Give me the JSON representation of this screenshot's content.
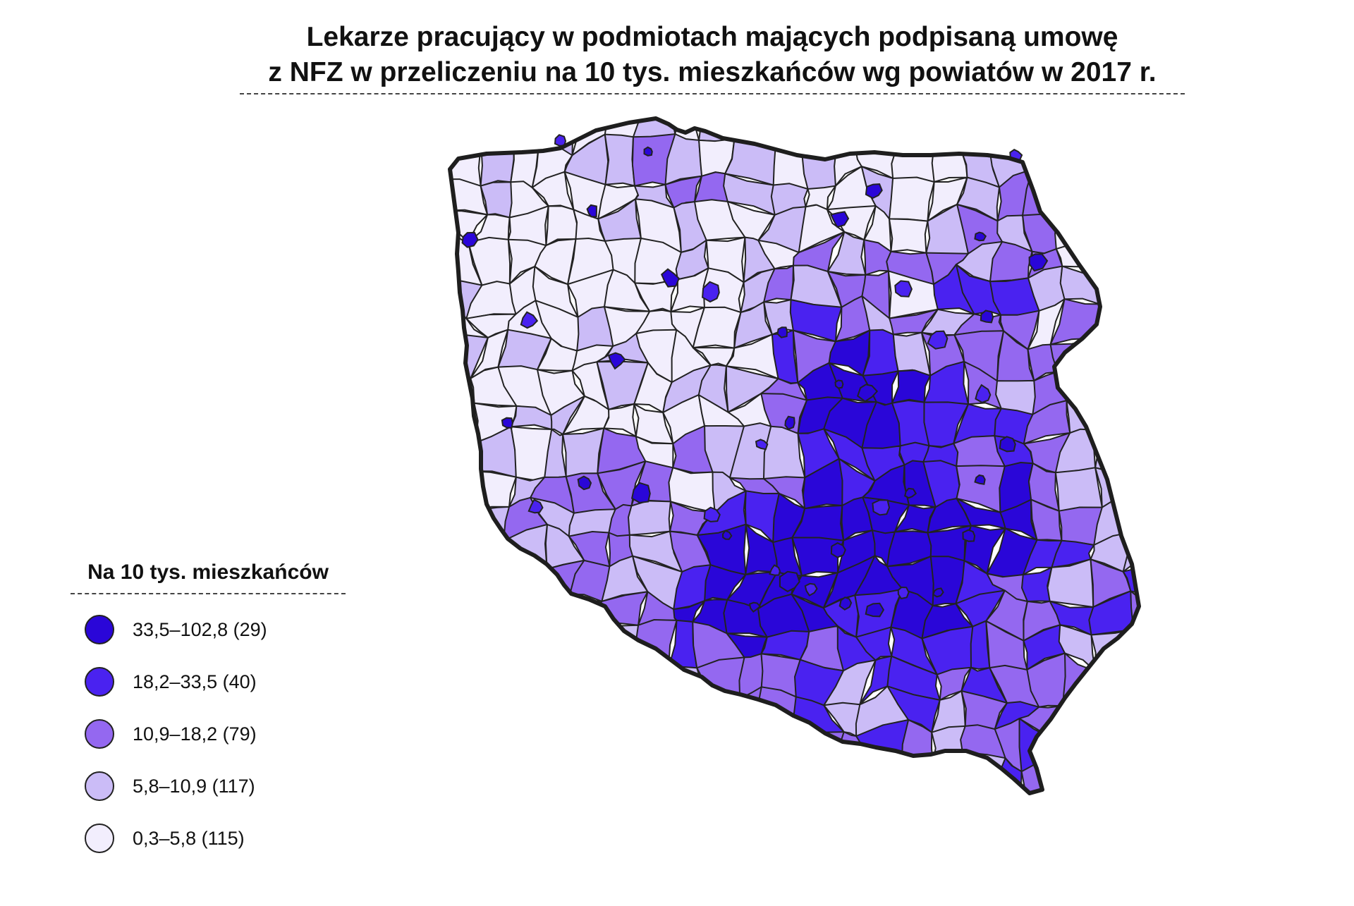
{
  "title": {
    "line1": "Lekarze pracujący w podmiotach mających podpisaną umowę",
    "line2": "z NFZ w przeliczeniu na 10 tys. mieszkańców wg powiatów w 2017 r."
  },
  "legend": {
    "title": "Na 10 tys. mieszkańców",
    "items": [
      {
        "label": "33,5–102,8 (29)",
        "color": "#2a06d8"
      },
      {
        "label": "18,2–33,5 (40)",
        "color": "#4a22f0"
      },
      {
        "label": "10,9–18,2 (79)",
        "color": "#9468f0"
      },
      {
        "label": "5,8–10,9 (117)",
        "color": "#cbbcf7"
      },
      {
        "label": "0,3–5,8 (115)",
        "color": "#f2eefd"
      }
    ]
  },
  "colors": {
    "outline": "#1e1e1e",
    "border": "#222222"
  }
}
